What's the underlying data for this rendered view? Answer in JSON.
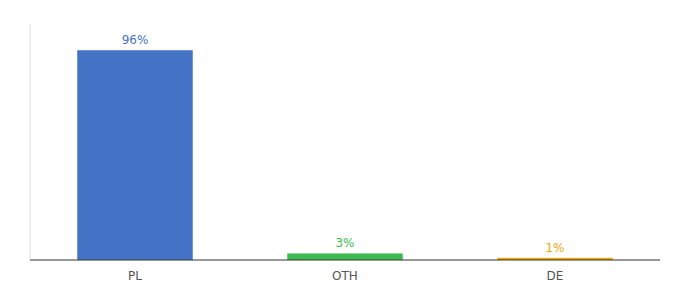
{
  "chart_data": {
    "type": "bar",
    "categories": [
      "PL",
      "OTH",
      "DE"
    ],
    "values": [
      96,
      3,
      1
    ],
    "value_labels": [
      "96%",
      "3%",
      "1%"
    ],
    "colors": [
      "#4472c4",
      "#3dba4e",
      "#f0a500"
    ],
    "ylim": [
      0,
      108
    ],
    "grid": false,
    "data_labels": true,
    "tick_labels": "x"
  }
}
